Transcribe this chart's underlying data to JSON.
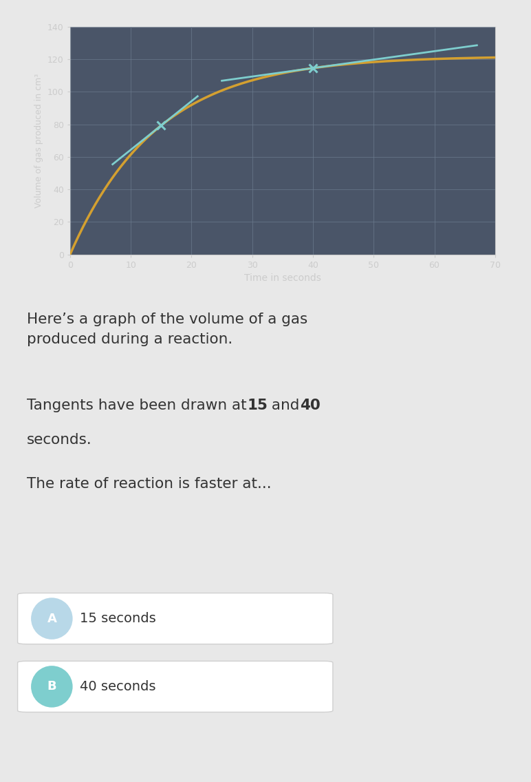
{
  "bg_color": "#4a5568",
  "plot_bg_color": "#4a5568",
  "grid_color": "#6b7a8d",
  "curve_color": "#d4a030",
  "tangent_color": "#7ecece",
  "marker_color": "#7ecece",
  "xlabel": "Time in seconds",
  "ylabel": "Volume of gas produced in cm³",
  "xlim": [
    0,
    70
  ],
  "ylim": [
    0,
    140
  ],
  "xticks": [
    0,
    10,
    20,
    30,
    40,
    50,
    60,
    70
  ],
  "yticks": [
    0,
    20,
    40,
    60,
    80,
    100,
    120,
    140
  ],
  "tick_color": "#cccccc",
  "axis_color": "#cccccc",
  "text_color": "#333333",
  "page_bg": "#e8e8e8",
  "chart_border_color": "#3a4555",
  "tangent1_x": 15,
  "tangent2_x": 40,
  "tangent1_xrange": [
    7,
    21
  ],
  "tangent2_xrange": [
    25,
    67
  ],
  "curve_A": 122,
  "curve_k": 0.07,
  "question_text": "Here’s a graph of the volume of a gas\nproduced during a reaction.",
  "tangent_pre": "Tangents have been drawn at ",
  "tangent_bold1": "15",
  "tangent_mid": " and ",
  "tangent_bold2": "40",
  "tangent_post": "\nseconds.",
  "rate_text": "The rate of reaction is faster at...",
  "option_A_label": "A",
  "option_A_text": "15 seconds",
  "option_B_label": "B",
  "option_B_text": "40 seconds",
  "option_bg": "#ffffff",
  "option_A_circle_bg": "#b8d8e8",
  "option_B_circle_bg": "#7ecece",
  "option_border": "#d0d0d0"
}
